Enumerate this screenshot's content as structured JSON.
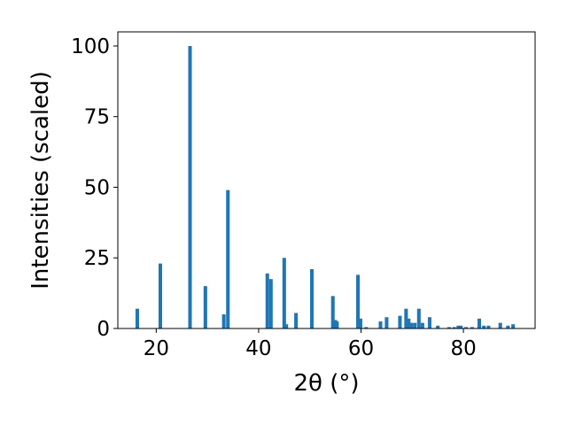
{
  "chart_data": {
    "type": "bar",
    "title": "",
    "xlabel": "2θ (°)",
    "ylabel": "Intensities (scaled)",
    "xlim": [
      12.5,
      94
    ],
    "ylim": [
      0,
      105
    ],
    "xticks": [
      20,
      40,
      60,
      80
    ],
    "yticks": [
      0,
      25,
      50,
      75,
      100
    ],
    "x_tick_labels": [
      "20",
      "40",
      "60",
      "80"
    ],
    "y_tick_labels": [
      "0",
      "25",
      "50",
      "75",
      "100"
    ],
    "grid": false,
    "bar_color": "#1f77b4",
    "bar_width_deg": 0.7,
    "series": [
      {
        "x": [
          16.3,
          20.8,
          26.6,
          29.6,
          33.2,
          34.0,
          41.7,
          42.4,
          45.0,
          45.4,
          47.3,
          50.4,
          54.5,
          55.0,
          55.3,
          59.4,
          59.9,
          61.0,
          63.8,
          65.0,
          67.6,
          68.8,
          69.3,
          69.8,
          70.5,
          71.3,
          72.0,
          73.4,
          75.0,
          77.2,
          78.2,
          79.0,
          79.5,
          80.5,
          81.7,
          83.1,
          84.0,
          84.9,
          87.2,
          88.7,
          89.7
        ],
        "values": [
          7,
          23,
          100,
          15,
          5,
          49,
          19.5,
          17.5,
          25,
          1.5,
          5.5,
          21,
          11.5,
          3,
          2.5,
          19,
          3.5,
          0.5,
          2.5,
          4,
          4.5,
          7,
          3.5,
          2,
          2,
          7,
          2,
          4,
          1,
          0.5,
          0.5,
          1,
          1,
          0.5,
          0.5,
          3.5,
          1,
          1,
          2,
          1,
          1.5
        ]
      }
    ]
  }
}
